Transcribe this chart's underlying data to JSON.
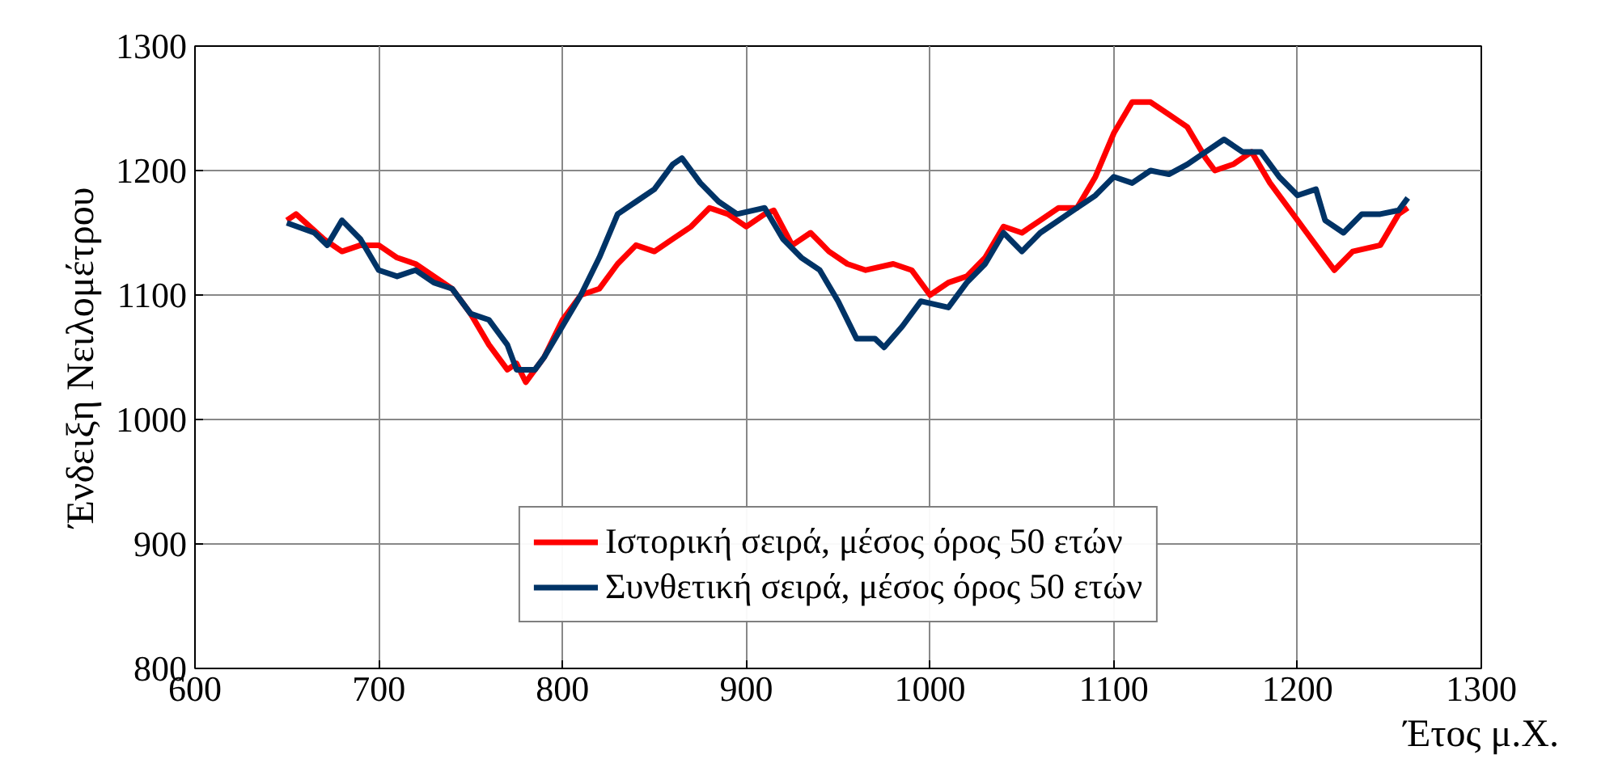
{
  "chart_data": {
    "type": "line",
    "xlabel": "Έτος μ.Χ.",
    "ylabel": "Ένδειξη Νειλομέτρου",
    "xlim": [
      600,
      1300
    ],
    "xticks": [
      600,
      700,
      800,
      900,
      1000,
      1100,
      1200,
      1300
    ],
    "ylim": [
      800,
      1300
    ],
    "yticks": [
      800,
      900,
      1000,
      1100,
      1200,
      1300
    ],
    "grid": true,
    "legend": "bottom",
    "line_style": "solid",
    "series": [
      {
        "name": "Ιστορική σειρά, μέσος όρος 50 ετών",
        "color": "#ff0000",
        "x": [
          650,
          655,
          670,
          680,
          690,
          700,
          710,
          720,
          740,
          750,
          760,
          770,
          775,
          780,
          790,
          800,
          810,
          820,
          830,
          840,
          850,
          860,
          870,
          880,
          890,
          900,
          910,
          915,
          925,
          935,
          945,
          955,
          965,
          980,
          990,
          1000,
          1010,
          1020,
          1030,
          1040,
          1050,
          1060,
          1070,
          1080,
          1090,
          1100,
          1110,
          1120,
          1130,
          1140,
          1150,
          1155,
          1165,
          1175,
          1185,
          1195,
          1205,
          1215,
          1220,
          1230,
          1245,
          1255,
          1260
        ],
        "values": [
          1160,
          1165,
          1145,
          1135,
          1140,
          1140,
          1130,
          1125,
          1105,
          1085,
          1060,
          1040,
          1045,
          1030,
          1050,
          1080,
          1100,
          1105,
          1125,
          1140,
          1135,
          1145,
          1155,
          1170,
          1165,
          1155,
          1165,
          1168,
          1140,
          1150,
          1135,
          1125,
          1120,
          1125,
          1120,
          1100,
          1110,
          1115,
          1130,
          1155,
          1150,
          1160,
          1170,
          1170,
          1195,
          1230,
          1255,
          1255,
          1245,
          1235,
          1210,
          1200,
          1205,
          1215,
          1190,
          1170,
          1150,
          1130,
          1120,
          1135,
          1140,
          1165,
          1170
        ]
      },
      {
        "name": "Συνθετική σειρά, μέσος όρος 50 ετών",
        "color": "#003366",
        "x": [
          650,
          665,
          672,
          680,
          690,
          700,
          710,
          720,
          730,
          740,
          750,
          760,
          770,
          775,
          785,
          790,
          800,
          810,
          820,
          830,
          840,
          850,
          860,
          865,
          875,
          885,
          895,
          910,
          920,
          930,
          940,
          950,
          960,
          970,
          975,
          985,
          995,
          1010,
          1020,
          1030,
          1040,
          1050,
          1060,
          1070,
          1080,
          1090,
          1100,
          1110,
          1120,
          1130,
          1140,
          1150,
          1160,
          1170,
          1180,
          1190,
          1200,
          1210,
          1215,
          1225,
          1235,
          1245,
          1255,
          1260
        ],
        "values": [
          1158,
          1150,
          1140,
          1160,
          1145,
          1120,
          1115,
          1120,
          1110,
          1105,
          1085,
          1080,
          1060,
          1040,
          1040,
          1050,
          1075,
          1100,
          1130,
          1165,
          1175,
          1185,
          1205,
          1210,
          1190,
          1175,
          1165,
          1170,
          1145,
          1130,
          1120,
          1095,
          1065,
          1065,
          1058,
          1075,
          1095,
          1090,
          1110,
          1125,
          1150,
          1135,
          1150,
          1160,
          1170,
          1180,
          1195,
          1190,
          1200,
          1197,
          1205,
          1215,
          1225,
          1215,
          1215,
          1195,
          1180,
          1185,
          1160,
          1150,
          1165,
          1165,
          1168,
          1178
        ]
      }
    ]
  }
}
